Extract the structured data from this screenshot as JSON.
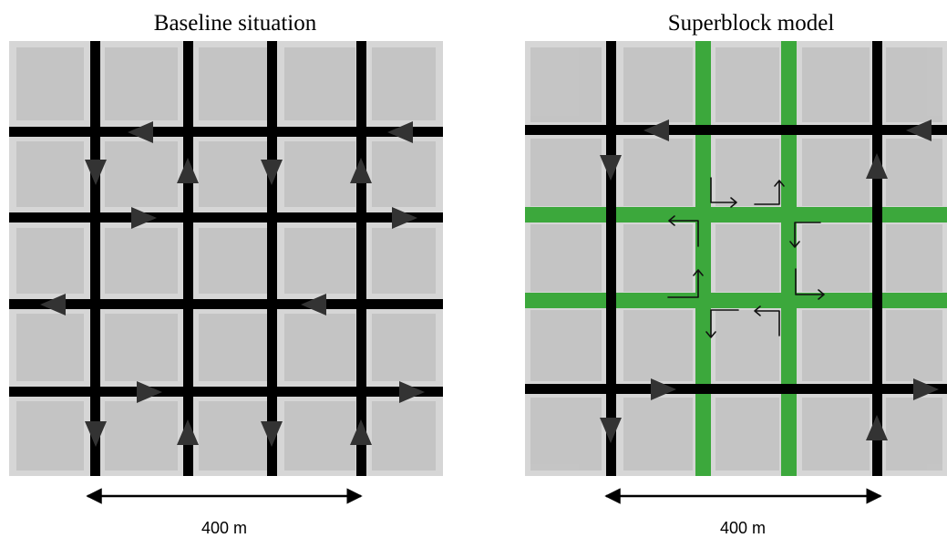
{
  "panels": [
    {
      "id": "baseline",
      "title": "Baseline situation",
      "scale_label": "400 m",
      "road_color": "#000000",
      "arrow_color": "#333333"
    },
    {
      "id": "superblock",
      "title": "Superblock model",
      "scale_label": "400 m",
      "road_color": "#000000",
      "green_color": "#3ca83c",
      "arrow_color": "#333333"
    }
  ],
  "background": {
    "aerial_tint": "#d4d4d4",
    "block_tint": "#bdbdbd"
  }
}
